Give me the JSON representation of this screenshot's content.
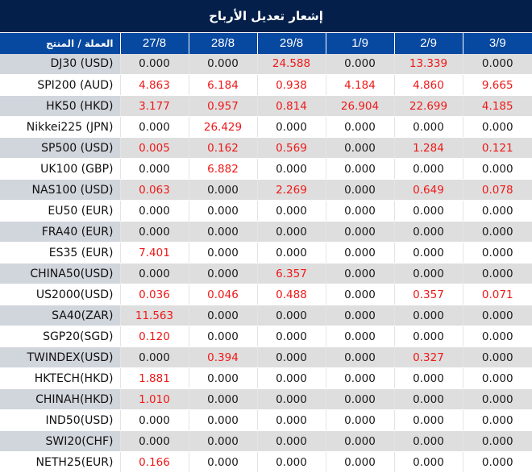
{
  "title": "إشعار تعديل الأرباح",
  "colors": {
    "title_bg": "#031f4a",
    "header_bg": "#0748a0",
    "stripe_bg": "#dedede",
    "stripe_product_bg": "#d1d5dc",
    "value_highlight": "#f01818",
    "value_zero": "#1a1a1a"
  },
  "header": {
    "product_label": "العملة / المنتج",
    "dates": [
      "27/8",
      "28/8",
      "29/8",
      "1/9",
      "2/9",
      "3/9"
    ]
  },
  "rows": [
    {
      "product": "DJ30 (USD)",
      "values": [
        "0.000",
        "0.000",
        "24.588",
        "0.000",
        "13.339",
        "0.000"
      ]
    },
    {
      "product": "SPI200 (AUD)",
      "values": [
        "4.863",
        "6.184",
        "0.938",
        "4.184",
        "4.860",
        "9.665"
      ]
    },
    {
      "product": "HK50 (HKD)",
      "values": [
        "3.177",
        "0.957",
        "0.814",
        "26.904",
        "22.699",
        "4.185"
      ]
    },
    {
      "product": "Nikkei225 (JPN)",
      "values": [
        "0.000",
        "26.429",
        "0.000",
        "0.000",
        "0.000",
        "0.000"
      ]
    },
    {
      "product": "SP500 (USD)",
      "values": [
        "0.005",
        "0.162",
        "0.569",
        "0.000",
        "1.284",
        "0.121"
      ]
    },
    {
      "product": "UK100 (GBP)",
      "values": [
        "0.000",
        "6.882",
        "0.000",
        "0.000",
        "0.000",
        "0.000"
      ]
    },
    {
      "product": "NAS100 (USD)",
      "values": [
        "0.063",
        "0.000",
        "2.269",
        "0.000",
        "0.649",
        "0.078"
      ]
    },
    {
      "product": "EU50 (EUR)",
      "values": [
        "0.000",
        "0.000",
        "0.000",
        "0.000",
        "0.000",
        "0.000"
      ]
    },
    {
      "product": "FRA40 (EUR)",
      "values": [
        "0.000",
        "0.000",
        "0.000",
        "0.000",
        "0.000",
        "0.000"
      ]
    },
    {
      "product": "ES35 (EUR)",
      "values": [
        "7.401",
        "0.000",
        "0.000",
        "0.000",
        "0.000",
        "0.000"
      ]
    },
    {
      "product": "CHINA50(USD)",
      "values": [
        "0.000",
        "0.000",
        "6.357",
        "0.000",
        "0.000",
        "0.000"
      ]
    },
    {
      "product": "US2000(USD)",
      "values": [
        "0.036",
        "0.046",
        "0.488",
        "0.000",
        "0.357",
        "0.071"
      ]
    },
    {
      "product": "SA40(ZAR)",
      "values": [
        "11.563",
        "0.000",
        "0.000",
        "0.000",
        "0.000",
        "0.000"
      ]
    },
    {
      "product": "SGP20(SGD)",
      "values": [
        "0.120",
        "0.000",
        "0.000",
        "0.000",
        "0.000",
        "0.000"
      ]
    },
    {
      "product": "TWINDEX(USD)",
      "values": [
        "0.000",
        "0.394",
        "0.000",
        "0.000",
        "0.327",
        "0.000"
      ]
    },
    {
      "product": "HKTECH(HKD)",
      "values": [
        "1.881",
        "0.000",
        "0.000",
        "0.000",
        "0.000",
        "0.000"
      ]
    },
    {
      "product": "CHINAH(HKD)",
      "values": [
        "1.010",
        "0.000",
        "0.000",
        "0.000",
        "0.000",
        "0.000"
      ]
    },
    {
      "product": "IND50(USD)",
      "values": [
        "0.000",
        "0.000",
        "0.000",
        "0.000",
        "0.000",
        "0.000"
      ]
    },
    {
      "product": "SWI20(CHF)",
      "values": [
        "0.000",
        "0.000",
        "0.000",
        "0.000",
        "0.000",
        "0.000"
      ]
    },
    {
      "product": "NETH25(EUR)",
      "values": [
        "0.166",
        "0.000",
        "0.000",
        "0.000",
        "0.000",
        "0.000"
      ]
    }
  ]
}
